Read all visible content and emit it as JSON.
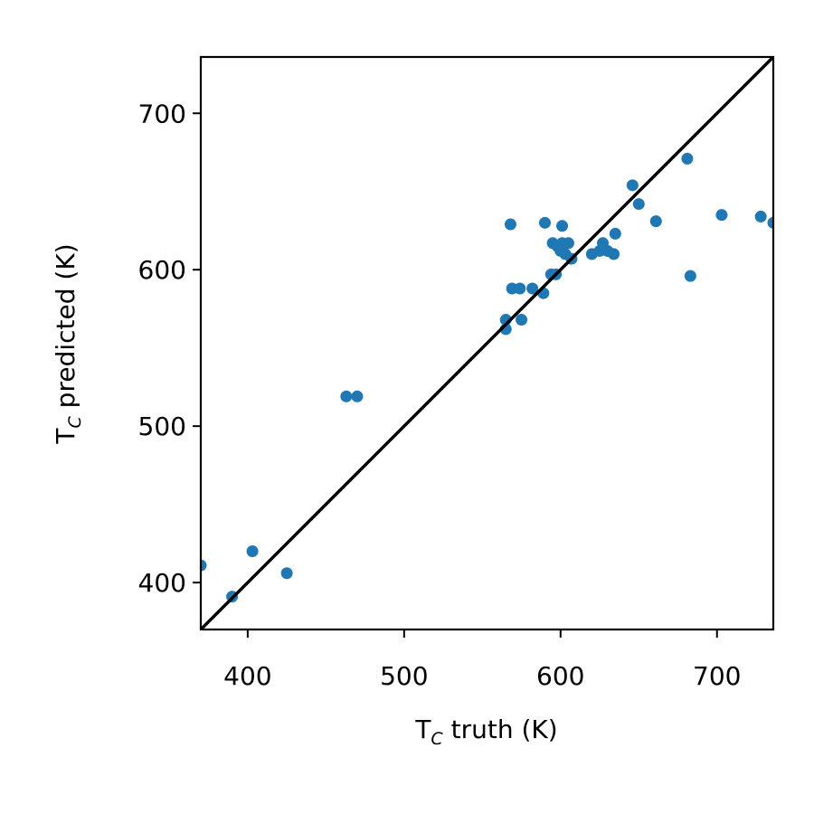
{
  "chart_data": {
    "type": "scatter",
    "xlabel": {
      "main": "T",
      "sub": "C",
      "rest": " truth (K)"
    },
    "ylabel": {
      "main": "T",
      "sub": "C",
      "rest": " predicted (K)"
    },
    "xlim": [
      370,
      736
    ],
    "ylim": [
      370,
      736
    ],
    "xticks": [
      400,
      500,
      600,
      700
    ],
    "yticks": [
      400,
      500,
      600,
      700
    ],
    "grid": false,
    "identity_line": true,
    "colors": {
      "point": "#1f77b4",
      "line": "#000000"
    },
    "points": [
      {
        "x": 370,
        "y": 411
      },
      {
        "x": 390,
        "y": 391
      },
      {
        "x": 403,
        "y": 420
      },
      {
        "x": 425,
        "y": 406
      },
      {
        "x": 463,
        "y": 519
      },
      {
        "x": 470,
        "y": 519
      },
      {
        "x": 565,
        "y": 562
      },
      {
        "x": 565,
        "y": 568
      },
      {
        "x": 568,
        "y": 629
      },
      {
        "x": 569,
        "y": 588
      },
      {
        "x": 574,
        "y": 588
      },
      {
        "x": 575,
        "y": 568
      },
      {
        "x": 582,
        "y": 588
      },
      {
        "x": 589,
        "y": 585
      },
      {
        "x": 590,
        "y": 630
      },
      {
        "x": 594,
        "y": 597
      },
      {
        "x": 595,
        "y": 617
      },
      {
        "x": 597,
        "y": 597
      },
      {
        "x": 598,
        "y": 615
      },
      {
        "x": 600,
        "y": 612
      },
      {
        "x": 601,
        "y": 628
      },
      {
        "x": 601,
        "y": 617
      },
      {
        "x": 603,
        "y": 610
      },
      {
        "x": 605,
        "y": 617
      },
      {
        "x": 607,
        "y": 607
      },
      {
        "x": 620,
        "y": 610
      },
      {
        "x": 625,
        "y": 612
      },
      {
        "x": 627,
        "y": 617
      },
      {
        "x": 630,
        "y": 612
      },
      {
        "x": 634,
        "y": 610
      },
      {
        "x": 635,
        "y": 623
      },
      {
        "x": 646,
        "y": 654
      },
      {
        "x": 650,
        "y": 642
      },
      {
        "x": 661,
        "y": 631
      },
      {
        "x": 681,
        "y": 671
      },
      {
        "x": 683,
        "y": 596
      },
      {
        "x": 703,
        "y": 635
      },
      {
        "x": 728,
        "y": 634
      },
      {
        "x": 736,
        "y": 630
      }
    ]
  }
}
